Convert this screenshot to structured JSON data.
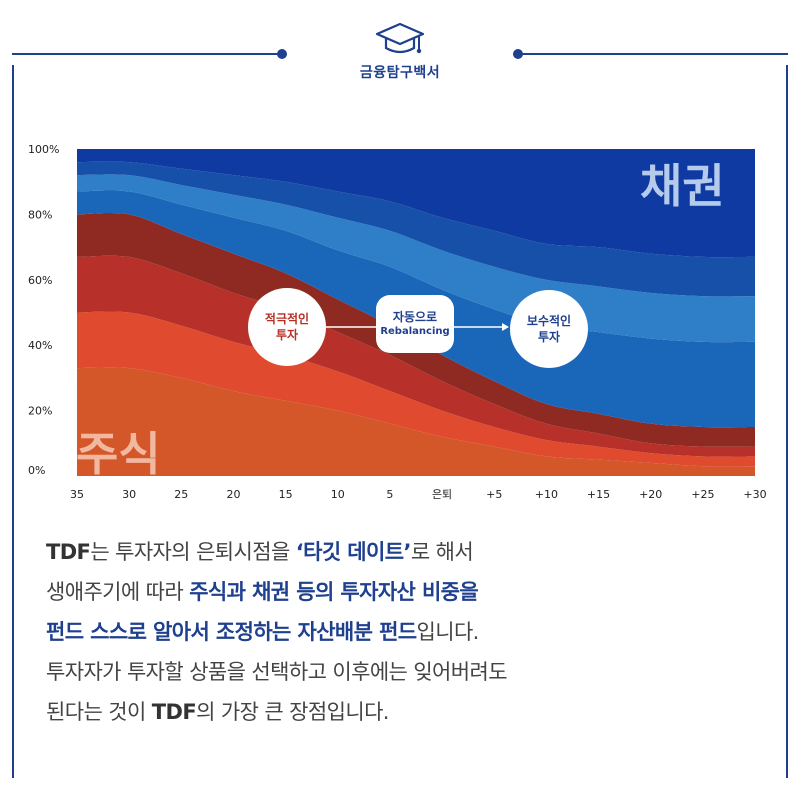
{
  "header": {
    "brand": "금융탐구백서",
    "icon": "graduation-cap-icon"
  },
  "chart_data": {
    "type": "area",
    "x": [
      "35",
      "30",
      "25",
      "20",
      "15",
      "10",
      "5",
      "은퇴",
      "+5",
      "+10",
      "+15",
      "+20",
      "+25",
      "+30"
    ],
    "y_ticks": [
      "100%",
      "80%",
      "60%",
      "40%",
      "20%",
      "0%"
    ],
    "ylim": [
      0,
      100
    ],
    "stacked": true,
    "series": [
      {
        "color": "#d4572a",
        "values": [
          33,
          33,
          30,
          26,
          23,
          20,
          16,
          12,
          9,
          6,
          5,
          4,
          3,
          3
        ]
      },
      {
        "color": "#e04a2e",
        "values": [
          17,
          17,
          16,
          15,
          14,
          12,
          10,
          8,
          6,
          5,
          4,
          3,
          3,
          3
        ]
      },
      {
        "color": "#b8302a",
        "values": [
          17,
          17,
          16,
          15,
          14,
          12,
          11,
          9,
          7,
          5,
          4,
          3,
          3,
          3
        ]
      },
      {
        "color": "#8e2a22",
        "values": [
          13,
          13,
          12,
          12,
          11,
          10,
          9,
          8,
          7,
          6,
          6,
          6,
          6,
          6
        ]
      },
      {
        "color": "#1a66b8",
        "values": [
          7,
          7,
          9,
          11,
          13,
          15,
          18,
          20,
          22,
          24,
          25,
          26,
          26,
          26
        ]
      },
      {
        "color": "#2e7ec8",
        "values": [
          5,
          5,
          6,
          7,
          8,
          10,
          11,
          12,
          13,
          14,
          14,
          14,
          14,
          14
        ]
      },
      {
        "color": "#1650a8",
        "values": [
          4,
          4,
          5,
          6,
          7,
          8,
          9,
          10,
          11,
          11,
          12,
          12,
          12,
          12
        ]
      },
      {
        "color": "#0e3aa2",
        "values": [
          4,
          4,
          6,
          8,
          10,
          13,
          16,
          21,
          25,
          29,
          30,
          32,
          33,
          33
        ]
      }
    ],
    "labels": {
      "stock": "주식",
      "bond": "채권"
    },
    "annotations": {
      "aggressive": "적극적인\n투자",
      "rebalance_line1": "자동으로",
      "rebalance_line2": "Rebalancing",
      "conservative": "보수적인\n투자"
    }
  },
  "body": {
    "line1": [
      {
        "text": "TDF",
        "style": "strong"
      },
      {
        "text": "는 투자자의 은퇴시점을 ",
        "style": "normal"
      },
      {
        "text": "‘타깃 데이트’",
        "style": "blue"
      },
      {
        "text": "로 해서",
        "style": "normal"
      }
    ],
    "line2": [
      {
        "text": "생애주기에 따라 ",
        "style": "normal"
      },
      {
        "text": "주식과 채권 등의 투자자산 비중을",
        "style": "blue"
      }
    ],
    "line3": [
      {
        "text": "펀드 스스로 알아서 조정하는 자산배분 펀드",
        "style": "blue"
      },
      {
        "text": "입니다.",
        "style": "normal"
      }
    ],
    "line4": [
      {
        "text": "투자자가 투자할 상품을 선택하고 이후에는 잊어버려도",
        "style": "normal"
      }
    ],
    "line5": [
      {
        "text": "된다는 것이 ",
        "style": "normal"
      },
      {
        "text": "TDF",
        "style": "strong"
      },
      {
        "text": "의 가장 큰 장점입니다.",
        "style": "normal"
      }
    ]
  }
}
